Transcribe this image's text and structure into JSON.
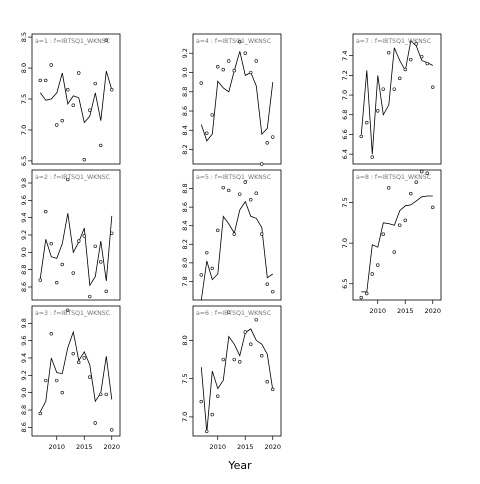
{
  "figure": {
    "xlabel": "Year"
  },
  "chart_data": [
    {
      "type": "line",
      "facet": "a=1 : f=IBTSQ1_WKNSC",
      "title": "a=1 : f=IBTSQ1_WKNSC",
      "xlim": [
        2005.5,
        2021.5
      ],
      "ylim": [
        6.45,
        8.55
      ],
      "yticks": [
        6.5,
        7.0,
        7.5,
        8.0,
        8.5
      ],
      "yticklabels": [
        "6.5",
        "7.0",
        "7.5",
        "8.0",
        "8.5"
      ],
      "xticks": [],
      "xticklabels": [],
      "points": [
        [
          2007,
          7.8
        ],
        [
          2008,
          7.8
        ],
        [
          2009,
          8.05
        ],
        [
          2010,
          7.08
        ],
        [
          2011,
          7.15
        ],
        [
          2012,
          7.65
        ],
        [
          2013,
          7.4
        ],
        [
          2014,
          7.92
        ],
        [
          2015,
          6.52
        ],
        [
          2016,
          7.32
        ],
        [
          2017,
          7.75
        ],
        [
          2018,
          6.75
        ],
        [
          2019,
          8.45
        ],
        [
          2020,
          7.65
        ]
      ],
      "line": [
        [
          2007,
          7.6
        ],
        [
          2008,
          7.48
        ],
        [
          2009,
          7.5
        ],
        [
          2010,
          7.6
        ],
        [
          2011,
          7.92
        ],
        [
          2012,
          7.42
        ],
        [
          2013,
          7.55
        ],
        [
          2014,
          7.52
        ],
        [
          2015,
          7.12
        ],
        [
          2016,
          7.22
        ],
        [
          2017,
          7.6
        ],
        [
          2018,
          7.15
        ],
        [
          2019,
          7.95
        ],
        [
          2020,
          7.65
        ]
      ]
    },
    {
      "type": "line",
      "facet": "a=2 : f=IBTSQ1_WKNSC",
      "title": "a=2 : f=IBTSQ1_WKNSC",
      "xlim": [
        2005.5,
        2021.5
      ],
      "ylim": [
        8.45,
        9.95
      ],
      "yticks": [
        8.6,
        8.8,
        9.0,
        9.2,
        9.4,
        9.6,
        9.8
      ],
      "yticklabels": [
        "8.6",
        "8.8",
        "9.0",
        "9.2",
        "9.4",
        "9.6",
        "9.8"
      ],
      "xticks": [],
      "xticklabels": [],
      "points": [
        [
          2007,
          8.68
        ],
        [
          2008,
          9.47
        ],
        [
          2009,
          9.1
        ],
        [
          2010,
          8.65
        ],
        [
          2011,
          8.86
        ],
        [
          2012,
          9.84
        ],
        [
          2013,
          8.76
        ],
        [
          2014,
          9.13
        ],
        [
          2015,
          9.19
        ],
        [
          2016,
          8.49
        ],
        [
          2017,
          9.07
        ],
        [
          2018,
          8.89
        ],
        [
          2019,
          8.55
        ],
        [
          2020,
          9.22
        ]
      ],
      "line": [
        [
          2007,
          8.7
        ],
        [
          2008,
          9.15
        ],
        [
          2009,
          8.95
        ],
        [
          2010,
          8.93
        ],
        [
          2011,
          9.1
        ],
        [
          2012,
          9.45
        ],
        [
          2013,
          9.0
        ],
        [
          2014,
          9.12
        ],
        [
          2015,
          9.28
        ],
        [
          2016,
          8.62
        ],
        [
          2017,
          8.72
        ],
        [
          2018,
          9.13
        ],
        [
          2019,
          8.67
        ],
        [
          2020,
          9.42
        ]
      ]
    },
    {
      "type": "line",
      "facet": "a=3 : f=IBTSQ1_WKNSC",
      "title": "a=3 : f=IBTSQ1_WKNSC",
      "xlim": [
        2005.5,
        2021.5
      ],
      "ylim": [
        8.5,
        10.0
      ],
      "yticks": [
        8.6,
        8.8,
        9.0,
        9.2,
        9.4,
        9.6,
        9.8
      ],
      "yticklabels": [
        "8.6",
        "8.8",
        "9.0",
        "9.2",
        "9.4",
        "9.6",
        "9.8"
      ],
      "xticks": [
        2010,
        2015,
        2020
      ],
      "xticklabels": [
        "2010",
        "2015",
        "2020"
      ],
      "points": [
        [
          2007,
          8.76
        ],
        [
          2008,
          9.14
        ],
        [
          2009,
          9.68
        ],
        [
          2010,
          9.14
        ],
        [
          2011,
          9.0
        ],
        [
          2012,
          9.95
        ],
        [
          2013,
          9.45
        ],
        [
          2014,
          9.35
        ],
        [
          2015,
          9.4
        ],
        [
          2016,
          9.18
        ],
        [
          2017,
          8.65
        ],
        [
          2018,
          8.98
        ],
        [
          2019,
          8.98
        ],
        [
          2020,
          8.57
        ]
      ],
      "line": [
        [
          2007,
          8.78
        ],
        [
          2008,
          8.9
        ],
        [
          2009,
          9.4
        ],
        [
          2010,
          9.23
        ],
        [
          2011,
          9.22
        ],
        [
          2012,
          9.52
        ],
        [
          2013,
          9.7
        ],
        [
          2014,
          9.37
        ],
        [
          2015,
          9.47
        ],
        [
          2016,
          9.32
        ],
        [
          2017,
          8.9
        ],
        [
          2018,
          9.0
        ],
        [
          2019,
          9.42
        ],
        [
          2020,
          8.92
        ]
      ]
    },
    {
      "type": "line",
      "facet": "a=4 : f=IBTSQ1_WKNSC",
      "title": "a=4 : f=IBTSQ1_WKNSC",
      "xlim": [
        2005.5,
        2021.5
      ],
      "ylim": [
        8.05,
        9.4
      ],
      "yticks": [
        8.2,
        8.4,
        8.6,
        8.8,
        9.0,
        9.2
      ],
      "yticklabels": [
        "8.2",
        "8.4",
        "8.6",
        "8.8",
        "9.0",
        "9.2"
      ],
      "xticks": [],
      "xticklabels": [],
      "points": [
        [
          2007,
          8.89
        ],
        [
          2008,
          8.37
        ],
        [
          2009,
          8.56
        ],
        [
          2010,
          9.06
        ],
        [
          2011,
          9.03
        ],
        [
          2012,
          9.12
        ],
        [
          2013,
          9.02
        ],
        [
          2014,
          9.32
        ],
        [
          2015,
          9.2
        ],
        [
          2016,
          9.0
        ],
        [
          2017,
          9.12
        ],
        [
          2018,
          8.05
        ],
        [
          2019,
          8.27
        ],
        [
          2020,
          8.33
        ]
      ],
      "line": [
        [
          2007,
          8.46
        ],
        [
          2008,
          8.29
        ],
        [
          2009,
          8.36
        ],
        [
          2010,
          8.91
        ],
        [
          2011,
          8.84
        ],
        [
          2012,
          8.8
        ],
        [
          2013,
          9.02
        ],
        [
          2014,
          9.22
        ],
        [
          2015,
          8.97
        ],
        [
          2016,
          9.0
        ],
        [
          2017,
          8.86
        ],
        [
          2018,
          8.36
        ],
        [
          2019,
          8.42
        ],
        [
          2020,
          8.9
        ]
      ]
    },
    {
      "type": "line",
      "facet": "a=5 : f=IBTSQ1_WKNSC",
      "title": "a=5 : f=IBTSQ1_WKNSC",
      "xlim": [
        2005.5,
        2021.5
      ],
      "ylim": [
        7.6,
        9.0
      ],
      "yticks": [
        7.8,
        8.0,
        8.2,
        8.4,
        8.6,
        8.8
      ],
      "yticklabels": [
        "7.8",
        "8.0",
        "8.2",
        "8.4",
        "8.6",
        "8.8"
      ],
      "xticks": [],
      "xticklabels": [],
      "points": [
        [
          2007,
          7.87
        ],
        [
          2008,
          8.11
        ],
        [
          2009,
          7.94
        ],
        [
          2010,
          8.35
        ],
        [
          2011,
          8.81
        ],
        [
          2012,
          8.78
        ],
        [
          2013,
          8.31
        ],
        [
          2014,
          8.74
        ],
        [
          2015,
          8.87
        ],
        [
          2016,
          8.68
        ],
        [
          2017,
          8.75
        ],
        [
          2018,
          8.31
        ],
        [
          2019,
          7.77
        ],
        [
          2020,
          7.69
        ]
      ],
      "line": [
        [
          2007,
          7.6
        ],
        [
          2008,
          8.02
        ],
        [
          2009,
          7.82
        ],
        [
          2010,
          7.88
        ],
        [
          2011,
          8.5
        ],
        [
          2012,
          8.42
        ],
        [
          2013,
          8.32
        ],
        [
          2014,
          8.57
        ],
        [
          2015,
          8.66
        ],
        [
          2016,
          8.5
        ],
        [
          2017,
          8.48
        ],
        [
          2018,
          8.38
        ],
        [
          2019,
          7.84
        ],
        [
          2020,
          7.88
        ]
      ]
    },
    {
      "type": "line",
      "facet": "a=6 : f=IBTSQ1_WKNSC",
      "title": "a=6 : f=IBTSQ1_WKNSC",
      "xlim": [
        2005.5,
        2021.5
      ],
      "ylim": [
        6.75,
        8.45
      ],
      "yticks": [
        7.0,
        7.5,
        8.0
      ],
      "yticklabels": [
        "7.0",
        "7.5",
        "8.0"
      ],
      "xticks": [
        2010,
        2015,
        2020
      ],
      "xticklabels": [
        "2010",
        "2015",
        "2020"
      ],
      "points": [
        [
          2007,
          7.2
        ],
        [
          2008,
          6.81
        ],
        [
          2009,
          7.03
        ],
        [
          2010,
          7.27
        ],
        [
          2011,
          7.75
        ],
        [
          2012,
          8.37
        ],
        [
          2013,
          7.75
        ],
        [
          2014,
          7.72
        ],
        [
          2015,
          8.11
        ],
        [
          2016,
          7.95
        ],
        [
          2017,
          8.27
        ],
        [
          2018,
          7.8
        ],
        [
          2019,
          7.46
        ],
        [
          2020,
          7.36
        ]
      ],
      "line": [
        [
          2007,
          7.65
        ],
        [
          2008,
          6.8
        ],
        [
          2009,
          7.6
        ],
        [
          2010,
          7.37
        ],
        [
          2011,
          7.48
        ],
        [
          2012,
          8.05
        ],
        [
          2013,
          7.95
        ],
        [
          2014,
          7.8
        ],
        [
          2015,
          8.1
        ],
        [
          2016,
          8.15
        ],
        [
          2017,
          8.0
        ],
        [
          2018,
          7.95
        ],
        [
          2019,
          7.82
        ],
        [
          2020,
          7.35
        ]
      ]
    },
    {
      "type": "line",
      "facet": "a=7 : f=IBTSQ1_WKNSC",
      "title": "a=7 : f=IBTSQ1_WKNSC",
      "xlim": [
        2005.5,
        2021.5
      ],
      "ylim": [
        6.3,
        7.62
      ],
      "yticks": [
        6.4,
        6.6,
        6.8,
        7.0,
        7.2,
        7.4
      ],
      "yticklabels": [
        "6.4",
        "6.6",
        "6.8",
        "7.0",
        "7.2",
        "7.4"
      ],
      "xticks": [],
      "xticklabels": [],
      "points": [
        [
          2007,
          6.58
        ],
        [
          2008,
          6.72
        ],
        [
          2009,
          6.37
        ],
        [
          2010,
          6.84
        ],
        [
          2011,
          7.06
        ],
        [
          2012,
          7.43
        ],
        [
          2013,
          7.06
        ],
        [
          2014,
          7.17
        ],
        [
          2015,
          7.26
        ],
        [
          2016,
          7.36
        ],
        [
          2017,
          7.52
        ],
        [
          2018,
          7.39
        ],
        [
          2019,
          7.32
        ],
        [
          2020,
          7.08
        ]
      ],
      "line": [
        [
          2007,
          6.6
        ],
        [
          2008,
          7.25
        ],
        [
          2009,
          6.4
        ],
        [
          2010,
          7.2
        ],
        [
          2011,
          6.8
        ],
        [
          2012,
          6.9
        ],
        [
          2013,
          7.48
        ],
        [
          2014,
          7.35
        ],
        [
          2015,
          7.25
        ],
        [
          2016,
          7.55
        ],
        [
          2017,
          7.5
        ],
        [
          2018,
          7.35
        ],
        [
          2019,
          7.33
        ],
        [
          2020,
          7.3
        ]
      ]
    },
    {
      "type": "line",
      "facet": "a=8 : f=IBTSQ1_WKNSC",
      "title": "a=8 : f=IBTSQ1_WKNSC",
      "xlim": [
        2005.5,
        2021.5
      ],
      "ylim": [
        6.3,
        7.9
      ],
      "yticks": [
        6.5,
        7.0,
        7.5
      ],
      "yticklabels": [
        "6.5",
        "7.0",
        "7.5"
      ],
      "xticks": [
        2010,
        2015,
        2020
      ],
      "xticklabels": [
        "2010",
        "2015",
        "2020"
      ],
      "points": [
        [
          2007,
          6.33
        ],
        [
          2008,
          6.38
        ],
        [
          2009,
          6.62
        ],
        [
          2010,
          6.73
        ],
        [
          2011,
          7.11
        ],
        [
          2012,
          7.68
        ],
        [
          2013,
          6.89
        ],
        [
          2014,
          7.22
        ],
        [
          2015,
          7.28
        ],
        [
          2016,
          7.61
        ],
        [
          2017,
          7.75
        ],
        [
          2018,
          7.88
        ],
        [
          2019,
          7.86
        ],
        [
          2020,
          7.44
        ]
      ],
      "line": [
        [
          2007,
          6.4
        ],
        [
          2008,
          6.4
        ],
        [
          2009,
          6.98
        ],
        [
          2010,
          6.95
        ],
        [
          2011,
          7.25
        ],
        [
          2012,
          7.24
        ],
        [
          2013,
          7.22
        ],
        [
          2014,
          7.4
        ],
        [
          2015,
          7.46
        ],
        [
          2016,
          7.47
        ],
        [
          2017,
          7.52
        ],
        [
          2018,
          7.57
        ],
        [
          2019,
          7.58
        ],
        [
          2020,
          7.58
        ]
      ]
    }
  ]
}
